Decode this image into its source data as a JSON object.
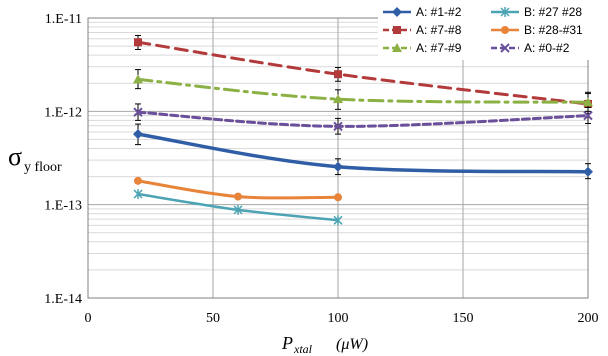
{
  "chart_data": {
    "type": "line",
    "title": "",
    "xlabel": "P",
    "xlabel_sub": "xtal",
    "xlabel_unit": "(μW)",
    "ylabel": "σ",
    "ylabel_sub": "y floor",
    "yscale": "log",
    "xlim": [
      0,
      200
    ],
    "ylim": [
      1e-14,
      1e-11
    ],
    "x_ticks": [
      0,
      50,
      100,
      150,
      200
    ],
    "x_tick_labels": [
      "0",
      "50",
      "100",
      "150",
      "200"
    ],
    "y_ticks": [
      1e-14,
      1e-13,
      1e-12,
      1e-11
    ],
    "y_tick_labels": [
      "1.E-14",
      "1.E-13",
      "1.E-12",
      "1.E-11"
    ],
    "grid": true,
    "legend_position": "top-right",
    "series": [
      {
        "name": "A: #1-#2",
        "color": "#2f5ea6",
        "marker": "diamond",
        "dash": "solid",
        "width": 3.5,
        "x": [
          20,
          100,
          200
        ],
        "y": [
          5.7e-13,
          2.55e-13,
          2.25e-13
        ],
        "err_high": [
          7.3e-13,
          3.1e-13,
          2.75e-13
        ],
        "err_low": [
          4.4e-13,
          2.1e-13,
          1.9e-13
        ]
      },
      {
        "name": "B: #27 #28",
        "color": "#4ba3b3",
        "marker": "star",
        "dash": "solid",
        "width": 2.5,
        "x": [
          20,
          60,
          100
        ],
        "y": [
          1.3e-13,
          8.8e-14,
          6.8e-14
        ]
      },
      {
        "name": "A: #7-#8",
        "color": "#b33a3a",
        "marker": "square",
        "dash": "dash",
        "width": 3,
        "x": [
          20,
          100,
          200
        ],
        "y": [
          5.5e-12,
          2.5e-12,
          1.2e-12
        ],
        "err_high": [
          6.5e-12,
          2.95e-12,
          1.6e-12
        ],
        "err_low": [
          4.6e-12,
          2.1e-12,
          9.5e-13
        ]
      },
      {
        "name": "B: #28-#31",
        "color": "#e8843a",
        "marker": "circle",
        "dash": "solid",
        "width": 3,
        "x": [
          20,
          60,
          100
        ],
        "y": [
          1.8e-13,
          1.22e-13,
          1.2e-13
        ]
      },
      {
        "name": "A: #7-#9",
        "color": "#8bb043",
        "marker": "triangle",
        "dash": "dashdot",
        "width": 3,
        "x": [
          20,
          100,
          200
        ],
        "y": [
          2.2e-12,
          1.35e-12,
          1.25e-12
        ],
        "err_high": [
          2.8e-12,
          1.7e-12,
          1.55e-12
        ],
        "err_low": [
          1.75e-12,
          1.05e-12,
          1e-12
        ]
      },
      {
        "name": "A: #0-#2",
        "color": "#6a4f9a",
        "marker": "x",
        "dash": "dot",
        "width": 3,
        "x": [
          20,
          100,
          200
        ],
        "y": [
          9.8e-13,
          6.9e-13,
          9e-13
        ],
        "err_high": [
          1.2e-12,
          8.4e-13,
          1.1e-12
        ],
        "err_low": [
          8e-13,
          5.7e-13,
          7.4e-13
        ]
      }
    ]
  }
}
